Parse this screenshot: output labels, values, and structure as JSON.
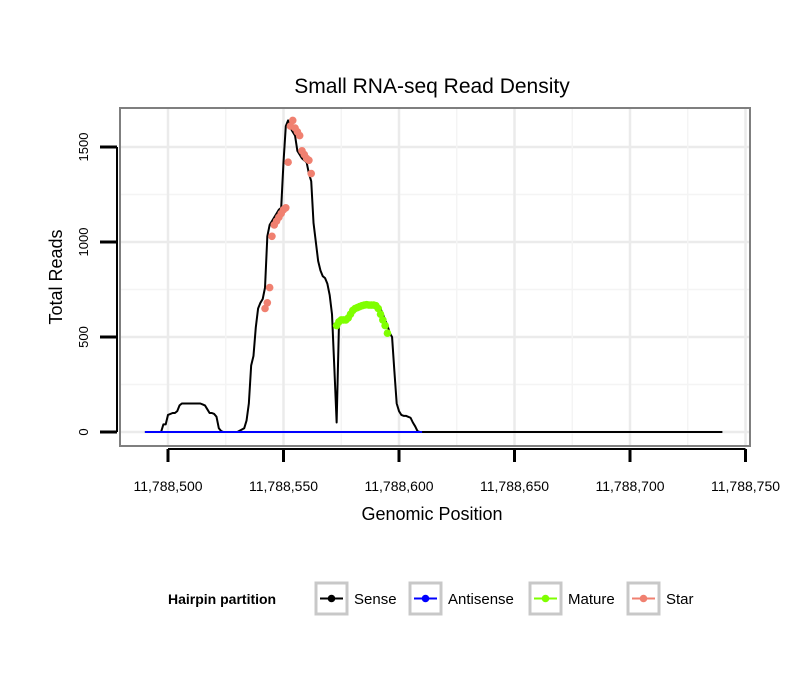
{
  "chart_data": {
    "type": "line",
    "title": "Small RNA-seq Read Density",
    "xlabel": "Genomic Position",
    "ylabel": "Total Reads",
    "xlim": [
      11788490,
      11788740
    ],
    "ylim": [
      -70,
      1700
    ],
    "grid": true,
    "x_ticks": [
      11788500,
      11788550,
      11788600,
      11788650,
      11788700,
      11788750
    ],
    "x_tick_labels": [
      "11,788,500",
      "11,788,550",
      "11,788,600",
      "11,788,650",
      "11,788,700",
      "11,788,750"
    ],
    "y_ticks": [
      0,
      500,
      1000,
      1500
    ],
    "y_tick_labels": [
      "0",
      "500",
      "1000",
      "1500"
    ],
    "legend": {
      "title": "Hairpin partition",
      "position": "bottom",
      "entries": [
        "Sense",
        "Antisense",
        "Mature",
        "Star"
      ]
    },
    "series": [
      {
        "name": "Sense",
        "color": "#000000",
        "x": [
          11788490,
          11788497,
          11788498,
          11788499,
          11788500,
          11788502,
          11788503,
          11788504,
          11788505,
          11788506,
          11788508,
          11788510,
          11788512,
          11788513,
          11788514,
          11788515,
          11788516,
          11788517,
          11788518,
          11788519,
          11788520,
          11788521,
          11788522,
          11788523,
          11788524,
          11788525,
          11788526,
          11788530,
          11788533,
          11788534,
          11788535,
          11788536,
          11788537,
          11788538,
          11788539,
          11788540,
          11788541,
          11788542,
          11788543,
          11788544,
          11788545,
          11788546,
          11788547,
          11788548,
          11788549,
          11788550,
          11788551,
          11788552,
          11788553,
          11788554,
          11788555,
          11788556,
          11788557,
          11788558,
          11788559,
          11788560,
          11788561,
          11788562,
          11788563,
          11788564,
          11788565,
          11788566,
          11788567,
          11788568,
          11788569,
          11788570,
          11788571,
          11788572,
          11788573,
          11788574,
          11788575,
          11788576,
          11788577,
          11788578,
          11788579,
          11788580,
          11788581,
          11788582,
          11788583,
          11788584,
          11788585,
          11788586,
          11788587,
          11788588,
          11788589,
          11788590,
          11788591,
          11788592,
          11788593,
          11788594,
          11788595,
          11788596,
          11788597,
          11788598,
          11788599,
          11788600,
          11788601,
          11788602,
          11788603,
          11788604,
          11788605,
          11788606,
          11788607,
          11788608,
          11788609,
          11788610,
          11788620,
          11788650,
          11788700,
          11788740
        ],
        "y": [
          0,
          0,
          40,
          40,
          90,
          100,
          100,
          110,
          140,
          150,
          150,
          150,
          150,
          150,
          150,
          145,
          140,
          120,
          100,
          100,
          95,
          80,
          20,
          5,
          0,
          0,
          0,
          0,
          20,
          60,
          150,
          350,
          400,
          550,
          650,
          680,
          700,
          760,
          1030,
          1090,
          1110,
          1130,
          1150,
          1170,
          1180,
          1420,
          1610,
          1640,
          1600,
          1580,
          1560,
          1480,
          1460,
          1440,
          1430,
          1420,
          1360,
          1320,
          1100,
          1000,
          900,
          850,
          820,
          810,
          780,
          720,
          620,
          340,
          50,
          560,
          580,
          590,
          590,
          590,
          600,
          620,
          640,
          650,
          655,
          660,
          665,
          668,
          670,
          668,
          668,
          668,
          665,
          650,
          620,
          590,
          560,
          520,
          500,
          320,
          150,
          110,
          90,
          85,
          85,
          80,
          75,
          50,
          30,
          5,
          0,
          0,
          0,
          0,
          0,
          0
        ]
      },
      {
        "name": "Antisense",
        "color": "#0000ff",
        "x": [
          11788490,
          11788610
        ],
        "y": [
          0,
          0
        ]
      },
      {
        "name": "Mature",
        "color": "#7fff00",
        "x": [
          11788573,
          11788574,
          11788575,
          11788576,
          11788577,
          11788578,
          11788579,
          11788580,
          11788581,
          11788582,
          11788583,
          11788584,
          11788585,
          11788586,
          11788587,
          11788588,
          11788589,
          11788590,
          11788591,
          11788592,
          11788593,
          11788594,
          11788595
        ],
        "y": [
          560,
          580,
          590,
          590,
          590,
          600,
          620,
          640,
          650,
          655,
          660,
          665,
          668,
          670,
          668,
          668,
          668,
          665,
          650,
          620,
          590,
          560,
          520
        ]
      },
      {
        "name": "Star",
        "color": "#f08070",
        "x": [
          11788542,
          11788543,
          11788544,
          11788545,
          11788546,
          11788547,
          11788548,
          11788549,
          11788550,
          11788551,
          11788552,
          11788553,
          11788554,
          11788555,
          11788556,
          11788557,
          11788558,
          11788559,
          11788560,
          11788561,
          11788562
        ],
        "y": [
          650,
          680,
          760,
          1030,
          1090,
          1110,
          1130,
          1150,
          1170,
          1180,
          1420,
          1610,
          1640,
          1600,
          1580,
          1560,
          1480,
          1460,
          1440,
          1430,
          1360
        ]
      }
    ]
  }
}
